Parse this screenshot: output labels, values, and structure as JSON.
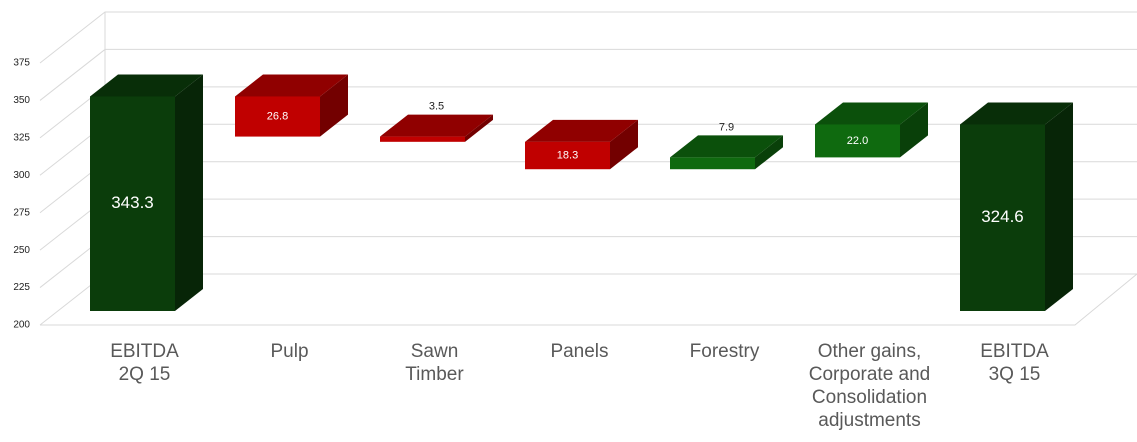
{
  "chart_data": {
    "type": "waterfall",
    "categories": [
      "EBITDA\n2Q 15",
      "Pulp",
      "Sawn\nTimber",
      "Panels",
      "Forestry",
      "Other gains,\nCorporate and\nConsolidation\nadjustments",
      "EBITDA\n3Q 15"
    ],
    "measures": [
      "total",
      "relative",
      "relative",
      "relative",
      "relative",
      "relative",
      "total"
    ],
    "values": [
      343.3,
      -26.8,
      -3.5,
      -18.3,
      7.9,
      22.0,
      324.6
    ],
    "value_labels": [
      "343.3",
      "26.8",
      "3.5",
      "18.3",
      "7.9",
      "22.0",
      "324.6"
    ],
    "colors": {
      "total": "#0b3d0b",
      "decrease": "#c00000",
      "increase": "#0f6a0f"
    },
    "ylim": [
      200,
      375
    ],
    "yticks": [
      200,
      225,
      250,
      275,
      300,
      325,
      350,
      375
    ],
    "grid": true
  }
}
